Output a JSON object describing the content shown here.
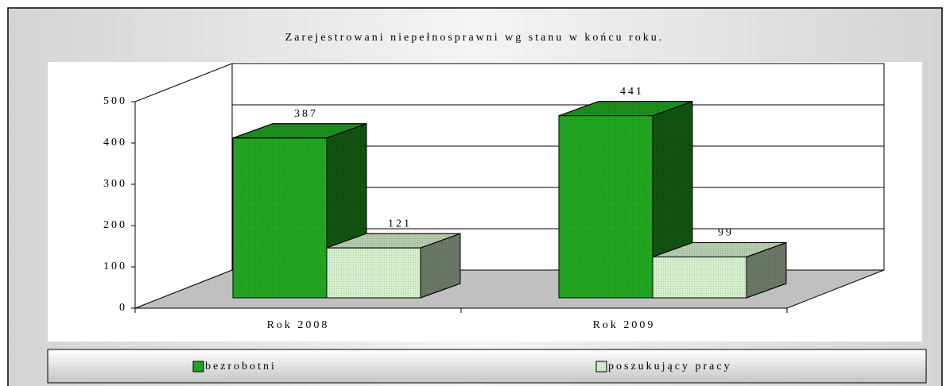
{
  "chart_data": {
    "type": "bar3d",
    "title": "Zarejestrowani niepełnosprawni wg stanu w końcu roku.",
    "categories": [
      "Rok 2008",
      "Rok 2009"
    ],
    "series": [
      {
        "name": "bezrobotni",
        "color": "#22a622",
        "values": [
          387,
          441
        ]
      },
      {
        "name": "poszukujący pracy",
        "color": "#d4efcc",
        "values": [
          121,
          99
        ]
      }
    ],
    "ylim": [
      0,
      500
    ],
    "yticks": [
      0,
      100,
      200,
      300,
      400,
      500
    ],
    "grid": true,
    "legend": "bottom"
  }
}
